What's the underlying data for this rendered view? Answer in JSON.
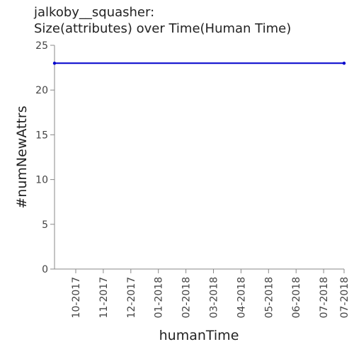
{
  "chart_data": {
    "type": "line",
    "title_line1": "jalkoby__squasher:",
    "title_line2": "Size(attributes) over Time(Human Time)",
    "xlabel": "humanTime",
    "ylabel": "#numNewAttrs",
    "ylim": [
      0,
      25
    ],
    "yticks": [
      0,
      5,
      10,
      15,
      20,
      25
    ],
    "xticks": [
      "10-2017",
      "11-2017",
      "12-2017",
      "01-2018",
      "02-2018",
      "03-2018",
      "04-2018",
      "05-2018",
      "06-2018",
      "07-2018",
      "07-2018"
    ],
    "series": [
      {
        "x": [
          "10-2017",
          "07-2018"
        ],
        "values": [
          23,
          23
        ]
      }
    ],
    "line_color": "#0000cc",
    "grid": false
  }
}
